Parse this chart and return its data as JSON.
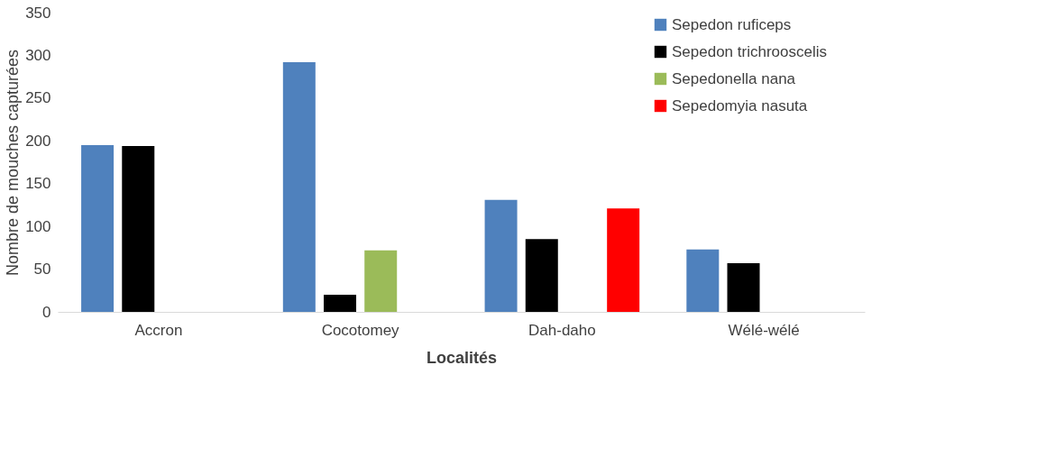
{
  "chart_data": {
    "type": "bar",
    "xlabel": "Localités",
    "ylabel": "Nombre de mouches capturées",
    "categories": [
      "Accron",
      "Cocotomey",
      "Dah-daho",
      "Wélé-wélé"
    ],
    "series": [
      {
        "name": "Sepedon ruficeps",
        "color": "#4f81bd",
        "values": [
          195,
          292,
          131,
          73
        ]
      },
      {
        "name": "Sepedon trichrooscelis",
        "color": "#000000",
        "values": [
          194,
          20,
          85,
          57
        ]
      },
      {
        "name": "Sepedonella nana",
        "color": "#9bbb59",
        "values": [
          null,
          72,
          null,
          null
        ]
      },
      {
        "name": "Sepedomyia nasuta",
        "color": "#ff0000",
        "values": [
          null,
          null,
          121,
          null
        ]
      }
    ],
    "ylim": [
      0,
      350
    ],
    "yticks": [
      0,
      50,
      100,
      150,
      200,
      250,
      300,
      350
    ],
    "grid": false,
    "legend": "top right"
  }
}
